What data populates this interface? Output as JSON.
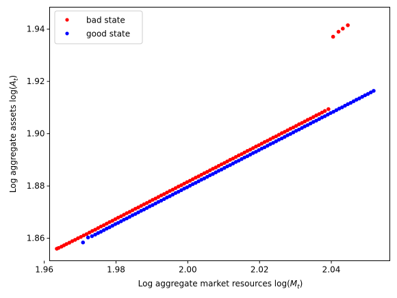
{
  "chart_data": {
    "type": "scatter",
    "xlabel_main": "Log aggregate market resources log(",
    "xlabel_var": "M",
    "xlabel_sub": "t",
    "xlabel_close": ")",
    "ylabel_main": "Log aggregate assets log(",
    "ylabel_var": "A",
    "ylabel_sub": "t",
    "ylabel_close": ")",
    "xlim": [
      1.9615,
      2.0563
    ],
    "ylim": [
      1.8514,
      1.9484
    ],
    "xticks": [
      1.96,
      1.98,
      2.0,
      2.02,
      2.04
    ],
    "xtick_labels": [
      "1.96",
      "1.98",
      "2.00",
      "2.02",
      "2.04"
    ],
    "yticks": [
      1.86,
      1.88,
      1.9,
      1.92,
      1.94
    ],
    "ytick_labels": [
      "1.86",
      "1.88",
      "1.90",
      "1.92",
      "1.94"
    ],
    "grid": false,
    "legend_position": "top-left",
    "series": [
      {
        "name": "bad state",
        "color": "#ff0000",
        "x": [
          1.9635,
          1.964,
          1.9648,
          1.9655,
          1.9662,
          1.967,
          1.9678,
          1.9686,
          1.9694,
          1.9702,
          1.971,
          1.9718,
          1.9726,
          1.9734,
          1.9742,
          1.975,
          1.9758,
          1.9766,
          1.9774,
          1.9782,
          1.979,
          1.9798,
          1.9806,
          1.9814,
          1.9822,
          1.983,
          1.9838,
          1.9846,
          1.9854,
          1.9862,
          1.987,
          1.9878,
          1.9886,
          1.9894,
          1.9902,
          1.991,
          1.9918,
          1.9926,
          1.9934,
          1.9942,
          1.995,
          1.9958,
          1.9966,
          1.9974,
          1.9982,
          1.999,
          1.9998,
          2.0006,
          2.0014,
          2.0022,
          2.003,
          2.0038,
          2.0046,
          2.0054,
          2.0062,
          2.007,
          2.0078,
          2.0086,
          2.0094,
          2.0102,
          2.011,
          2.0118,
          2.0126,
          2.0134,
          2.0142,
          2.015,
          2.0158,
          2.0166,
          2.0174,
          2.0182,
          2.019,
          2.0198,
          2.0206,
          2.0214,
          2.0222,
          2.023,
          2.0238,
          2.0246,
          2.0254,
          2.0262,
          2.027,
          2.0278,
          2.0286,
          2.0294,
          2.0302,
          2.031,
          2.0318,
          2.0326,
          2.0334,
          2.0342,
          2.035,
          2.0358,
          2.0366,
          2.0374,
          2.0382,
          2.0392,
          2.0405,
          2.042,
          2.0432,
          2.0446
        ],
        "y": [
          1.856,
          1.8563,
          1.8568,
          1.8573,
          1.8578,
          1.8583,
          1.8589,
          1.8594,
          1.86,
          1.8605,
          1.8611,
          1.8616,
          1.8622,
          1.8628,
          1.8633,
          1.8639,
          1.8645,
          1.865,
          1.8656,
          1.8662,
          1.8667,
          1.8673,
          1.8679,
          1.8684,
          1.869,
          1.8696,
          1.8701,
          1.8707,
          1.8713,
          1.8718,
          1.8724,
          1.873,
          1.8735,
          1.8741,
          1.8747,
          1.8752,
          1.8758,
          1.8764,
          1.8769,
          1.8775,
          1.8781,
          1.8786,
          1.8792,
          1.8798,
          1.8803,
          1.8809,
          1.8815,
          1.882,
          1.8826,
          1.8832,
          1.8837,
          1.8843,
          1.8849,
          1.8854,
          1.886,
          1.8866,
          1.8871,
          1.8877,
          1.8883,
          1.8888,
          1.8894,
          1.89,
          1.8905,
          1.8911,
          1.8917,
          1.8922,
          1.8928,
          1.8934,
          1.8939,
          1.8945,
          1.8951,
          1.8956,
          1.8962,
          1.8968,
          1.8973,
          1.8979,
          1.8985,
          1.899,
          1.8996,
          1.9002,
          1.9007,
          1.9013,
          1.9019,
          1.9024,
          1.903,
          1.9036,
          1.9041,
          1.9047,
          1.9053,
          1.9058,
          1.9064,
          1.907,
          1.9075,
          1.9081,
          1.9087,
          1.9094,
          1.9371,
          1.939,
          1.9402,
          1.9415
        ]
      },
      {
        "name": "good state",
        "color": "#0000ff",
        "x": [
          1.9708,
          1.9722,
          1.9733,
          1.9742,
          1.975,
          1.9758,
          1.9766,
          1.9774,
          1.9782,
          1.979,
          1.9798,
          1.9806,
          1.9814,
          1.9822,
          1.983,
          1.9838,
          1.9846,
          1.9854,
          1.9862,
          1.987,
          1.9878,
          1.9886,
          1.9894,
          1.9902,
          1.991,
          1.9918,
          1.9926,
          1.9934,
          1.9942,
          1.995,
          1.9958,
          1.9966,
          1.9974,
          1.9982,
          1.999,
          1.9998,
          2.0006,
          2.0014,
          2.0022,
          2.003,
          2.0038,
          2.0046,
          2.0054,
          2.0062,
          2.007,
          2.0078,
          2.0086,
          2.0094,
          2.0102,
          2.011,
          2.0118,
          2.0126,
          2.0134,
          2.0142,
          2.015,
          2.0158,
          2.0166,
          2.0174,
          2.0182,
          2.019,
          2.0198,
          2.0206,
          2.0214,
          2.0222,
          2.023,
          2.0238,
          2.0246,
          2.0254,
          2.0262,
          2.027,
          2.0278,
          2.0286,
          2.0294,
          2.0302,
          2.031,
          2.0318,
          2.0326,
          2.0334,
          2.0342,
          2.035,
          2.0358,
          2.0366,
          2.0374,
          2.0382,
          2.039,
          2.0398,
          2.0406,
          2.0414,
          2.0422,
          2.043,
          2.0438,
          2.0446,
          2.0454,
          2.0462,
          2.047,
          2.0478,
          2.0486,
          2.0494,
          2.0502,
          2.051,
          2.0518
        ],
        "y": [
          1.8584,
          1.8603,
          1.8608,
          1.8614,
          1.862,
          1.8625,
          1.8631,
          1.8637,
          1.8642,
          1.8648,
          1.8654,
          1.8659,
          1.8665,
          1.8671,
          1.8676,
          1.8682,
          1.8688,
          1.8693,
          1.8699,
          1.8705,
          1.871,
          1.8716,
          1.8722,
          1.8727,
          1.8733,
          1.8739,
          1.8744,
          1.875,
          1.8756,
          1.8761,
          1.8767,
          1.8773,
          1.8778,
          1.8784,
          1.879,
          1.8795,
          1.8801,
          1.8807,
          1.8812,
          1.8818,
          1.8824,
          1.8829,
          1.8835,
          1.8841,
          1.8846,
          1.8852,
          1.8858,
          1.8863,
          1.8869,
          1.8875,
          1.888,
          1.8886,
          1.8892,
          1.8897,
          1.8903,
          1.8909,
          1.8914,
          1.892,
          1.8926,
          1.8931,
          1.8937,
          1.8943,
          1.8948,
          1.8954,
          1.896,
          1.8965,
          1.8971,
          1.8977,
          1.8982,
          1.8988,
          1.8994,
          1.8999,
          1.9005,
          1.9011,
          1.9016,
          1.9022,
          1.9028,
          1.9033,
          1.9039,
          1.9045,
          1.905,
          1.9056,
          1.9062,
          1.9067,
          1.9073,
          1.9079,
          1.9084,
          1.909,
          1.9096,
          1.9101,
          1.9107,
          1.9113,
          1.9118,
          1.9124,
          1.913,
          1.9135,
          1.9141,
          1.9147,
          1.9152,
          1.9158,
          1.9164
        ]
      }
    ]
  }
}
